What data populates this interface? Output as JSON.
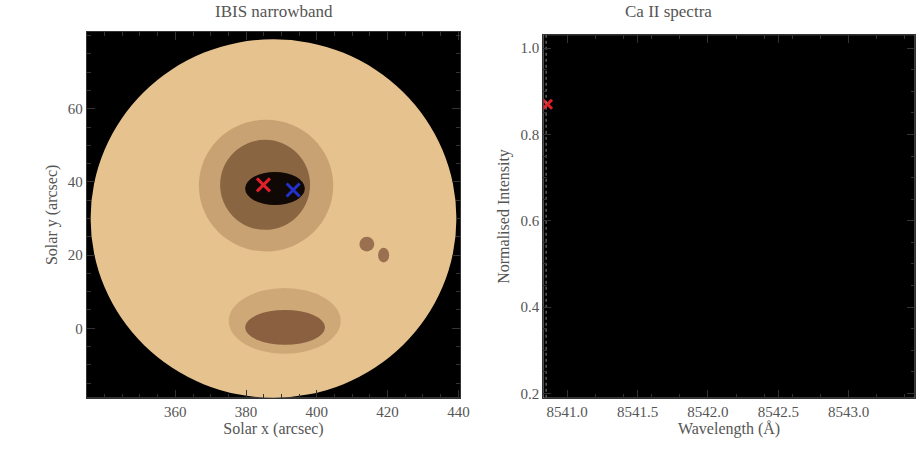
{
  "chart_data": [
    {
      "type": "scatter",
      "title": "IBIS narrowband",
      "x_label": "Solar x (arcsec)",
      "y_label": "Solar y (arcsec)",
      "xlim": [
        335,
        440.5
      ],
      "ylim": [
        -19,
        81
      ],
      "xticks": [
        360,
        380,
        400,
        420,
        440
      ],
      "yticks": [
        0,
        20,
        40,
        60
      ],
      "grid": false,
      "series": [
        {
          "x": [
            384.9
          ],
          "values": [
            39.2
          ],
          "color": "#e0202a",
          "marker": "x"
        },
        {
          "x": [
            393.3
          ],
          "values": [
            37.8
          ],
          "color": "#2233cc",
          "marker": "x"
        }
      ]
    },
    {
      "type": "scatter",
      "title": "Ca II spectra",
      "x_label": "Wavelength (Å)",
      "y_label": "Normalised Intensity",
      "xlim": [
        8540.83,
        8543.47
      ],
      "ylim": [
        0.19,
        1.03
      ],
      "xticks": [
        {
          "value": 8541,
          "label": "8541.0"
        },
        8541.5,
        {
          "value": 8542,
          "label": "8542.0"
        },
        8542.5,
        {
          "value": 8543,
          "label": "8543.0"
        }
      ],
      "yticks": [
        0.2,
        0.4,
        0.6,
        0.8,
        {
          "value": 1,
          "label": "1.0"
        }
      ],
      "grid": false,
      "series": [
        {
          "x": [
            8540.86
          ],
          "values": [
            0.87
          ],
          "color": "#e0202a",
          "marker": "x"
        },
        {
          "x": [
            8540.85,
            8540.85
          ],
          "values": [
            0.19,
            1.03
          ],
          "color": "#888888",
          "type": "line",
          "line_style": "dotted"
        }
      ]
    }
  ]
}
